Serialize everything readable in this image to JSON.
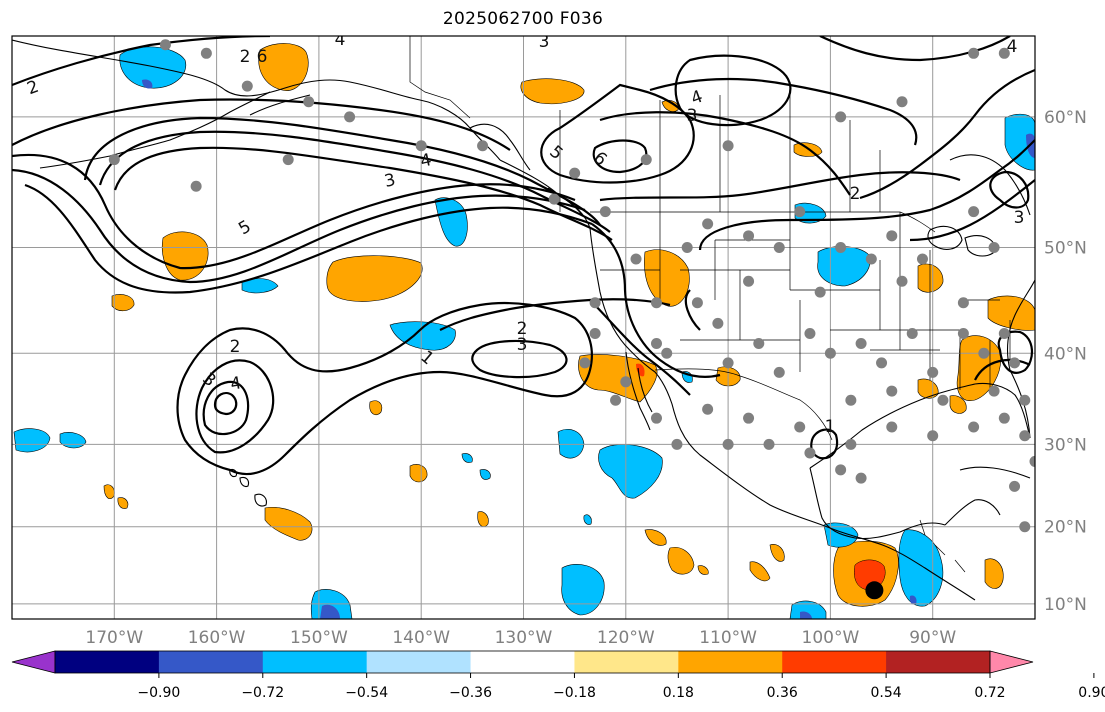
{
  "title": "2025062700 F036",
  "map": {
    "projection": "mercator",
    "extent": {
      "lon_min": -180,
      "lon_max": -80,
      "lat_min": 8,
      "lat_max": 65
    },
    "gridlines": true,
    "lon_ticks": [
      {
        "value": -170,
        "label": "170°W"
      },
      {
        "value": -160,
        "label": "160°W"
      },
      {
        "value": -150,
        "label": "150°W"
      },
      {
        "value": -140,
        "label": "140°W"
      },
      {
        "value": -130,
        "label": "130°W"
      },
      {
        "value": -120,
        "label": "120°W"
      },
      {
        "value": -110,
        "label": "110°W"
      },
      {
        "value": -100,
        "label": "100°W"
      },
      {
        "value": -90,
        "label": "90°W"
      }
    ],
    "lat_ticks": [
      {
        "value": 10,
        "label": "10°N"
      },
      {
        "value": 20,
        "label": "20°N"
      },
      {
        "value": 30,
        "label": "30°N"
      },
      {
        "value": 40,
        "label": "40°N"
      },
      {
        "value": 50,
        "label": "50°N"
      },
      {
        "value": 60,
        "label": "60°N"
      }
    ],
    "contour_labels": [
      "2",
      "2",
      "3",
      "4",
      "5",
      "6",
      "1",
      "2",
      "3",
      "3",
      "4",
      "3",
      "4",
      "5",
      "6",
      "4",
      "3",
      "2",
      "1",
      "2",
      "3",
      "4"
    ],
    "marker": {
      "name": "black-dot",
      "lon": -95.7,
      "lat": 11.8,
      "color": "#000000"
    }
  },
  "colorbar": {
    "type": "horizontal",
    "extend": "both",
    "tick_labels": [
      "−0.90",
      "−0.72",
      "−0.54",
      "−0.36",
      "−0.18",
      "0.18",
      "0.36",
      "0.54",
      "0.72",
      "0.90"
    ],
    "colors": [
      "#9933cc",
      "#000080",
      "#3558c8",
      "#00bfff",
      "#b0e2ff",
      "#ffffff",
      "#ffe78a",
      "#ffa500",
      "#ff3c00",
      "#b22222",
      "#ff88aa"
    ]
  },
  "colors": {
    "grid": "#9a9a9a",
    "contour": "#000000",
    "station": "#808080",
    "tick_text": "#808080"
  }
}
